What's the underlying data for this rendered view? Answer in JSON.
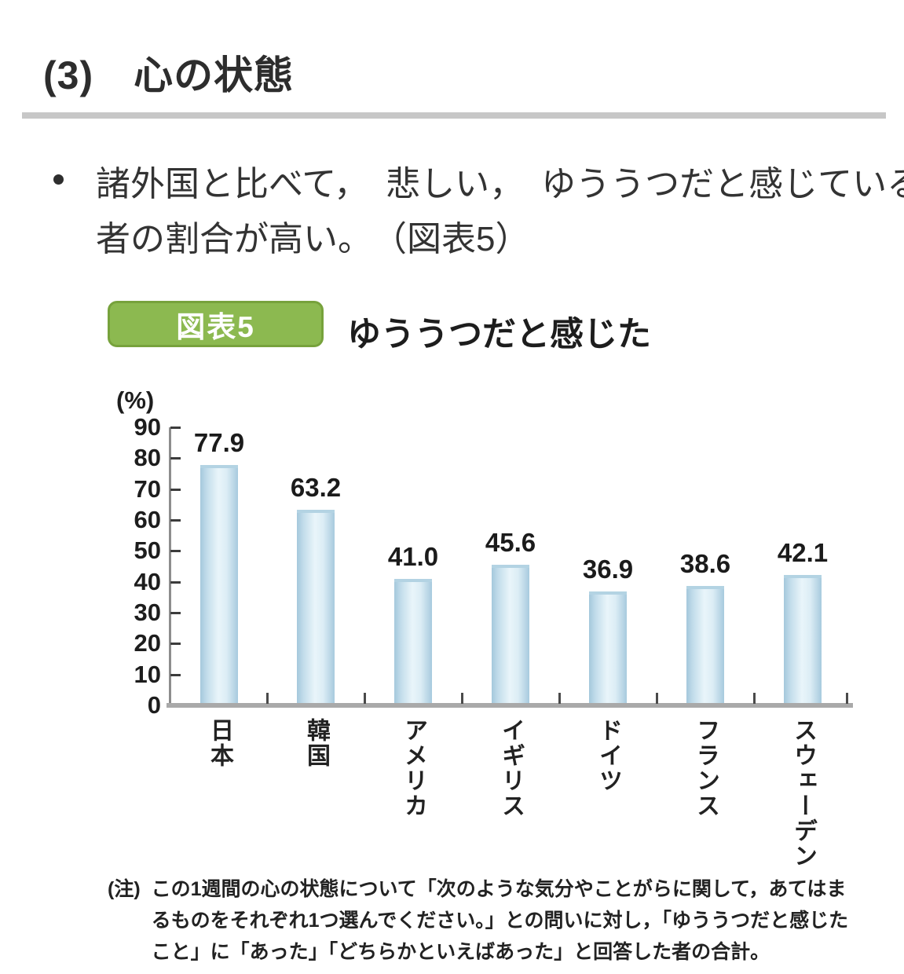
{
  "section": {
    "heading": "(3)　心の状態"
  },
  "bullet": {
    "line1": "諸外国と比べて，　悲しい，　ゆううつだと感じている",
    "line2": "者の割合が高い。　（図表5）"
  },
  "chart_data": {
    "type": "bar",
    "badge": "図表5",
    "title": "ゆううつだと感じた",
    "unit_label": "(%)",
    "categories": [
      "日本",
      "韓国",
      "アメリカ",
      "イギリス",
      "ドイツ",
      "フランス",
      "スウェーデン"
    ],
    "values": [
      77.9,
      63.2,
      41.0,
      45.6,
      36.9,
      38.6,
      42.1
    ],
    "value_labels": [
      "77.9",
      "63.2",
      "41.0",
      "45.6",
      "36.9",
      "38.6",
      "42.1"
    ],
    "ylim": [
      0,
      90
    ],
    "ytick_step": 10,
    "grid": false,
    "legend": false,
    "bar_color_edge": "#a4c8dc",
    "bar_color_center": "#e9f5fa",
    "badge_color": "#8cb950"
  },
  "note": {
    "label": "(注)",
    "lines": [
      "この1週間の心の状態について「次のような気分やことがらに関して，あてはま",
      "るものをそれぞれ1つ選んでください。」との問いに対し，「ゆううつだと感じた",
      "こと」に「あった」「どちらかといえばあった」と回答した者の合計。"
    ]
  }
}
